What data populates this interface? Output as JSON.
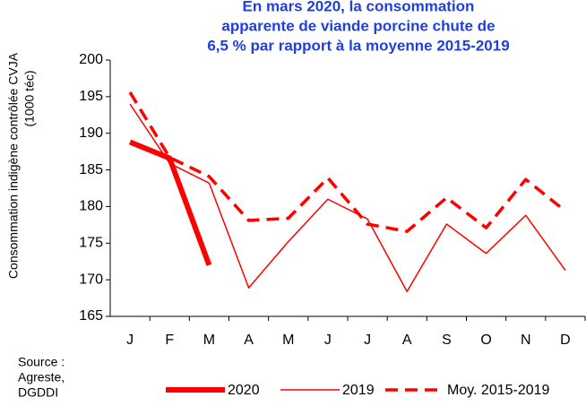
{
  "chart_data": {
    "type": "line",
    "title": [
      "En  mars 2020, la consommation",
      "apparente de viande porcine chute de",
      "6,5 % par rapport à la moyenne 2015-2019"
    ],
    "ylabel": [
      "Consommation  indigène contrôlée CVJA",
      "(1000 téc)"
    ],
    "source": [
      "Source :",
      "Agreste,",
      "DGDDI"
    ],
    "categories": [
      "J",
      "F",
      "M",
      "A",
      "M",
      "J",
      "J",
      "A",
      "S",
      "O",
      "N",
      "D"
    ],
    "series": [
      {
        "name": "2020",
        "color": "#ff0000",
        "style": "bold",
        "values": [
          188.8,
          186.6,
          172.0,
          null,
          null,
          null,
          null,
          null,
          null,
          null,
          null,
          null
        ]
      },
      {
        "name": "2019",
        "color": "#ff0000",
        "style": "thin",
        "values": [
          194.0,
          185.9,
          183.2,
          168.9,
          175.2,
          181.0,
          178.3,
          168.4,
          177.6,
          173.6,
          178.8,
          171.3
        ]
      },
      {
        "name": "Moy. 2015-2019",
        "color": "#ff0000",
        "style": "dashed",
        "values": [
          195.6,
          186.7,
          184.1,
          178.1,
          178.4,
          183.9,
          177.6,
          176.6,
          181.2,
          177.1,
          183.7,
          179.4
        ]
      }
    ],
    "ylim": [
      165,
      200
    ],
    "yticks": [
      165,
      170,
      175,
      180,
      185,
      190,
      195,
      200
    ]
  }
}
